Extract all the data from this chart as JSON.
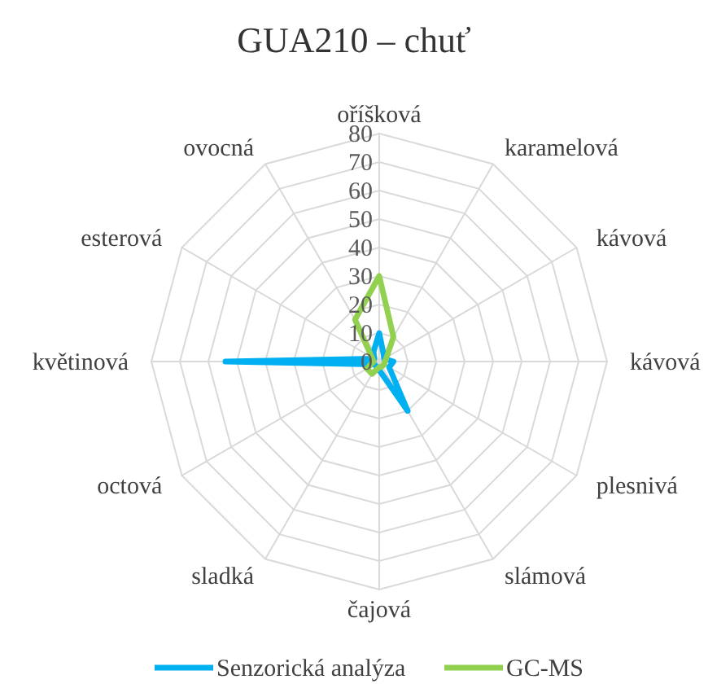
{
  "chart_data": {
    "type": "radar",
    "title": "GUA210  – chuť",
    "categories": [
      "oříšková",
      "karamelová",
      "kávová",
      "kávová",
      "plesnivá",
      "slámová",
      "čajová",
      "sladká",
      "octová",
      "květinová",
      "esterová",
      "ovocná"
    ],
    "series": [
      {
        "name": "Senzorická analýza",
        "color": "#00b0f0",
        "values": [
          10,
          3,
          2,
          5,
          4,
          20,
          3,
          2,
          2,
          54,
          2,
          4
        ]
      },
      {
        "name": "GC-MS",
        "color": "#92d050",
        "values": [
          30,
          10,
          3,
          2,
          2,
          2,
          2,
          5,
          5,
          2,
          3,
          17
        ]
      }
    ],
    "ylim": [
      0,
      80
    ],
    "yticks": [
      0,
      10,
      20,
      30,
      40,
      50,
      60,
      70,
      80
    ],
    "grid": true,
    "legend": "bottom",
    "marker": "none"
  }
}
